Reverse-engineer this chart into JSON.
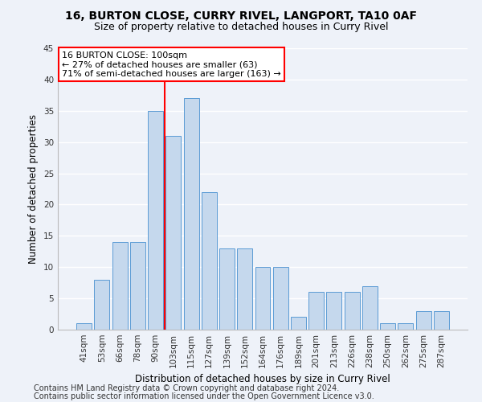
{
  "title1": "16, BURTON CLOSE, CURRY RIVEL, LANGPORT, TA10 0AF",
  "title2": "Size of property relative to detached houses in Curry Rivel",
  "xlabel": "Distribution of detached houses by size in Curry Rivel",
  "ylabel": "Number of detached properties",
  "categories": [
    "41sqm",
    "53sqm",
    "66sqm",
    "78sqm",
    "90sqm",
    "103sqm",
    "115sqm",
    "127sqm",
    "139sqm",
    "152sqm",
    "164sqm",
    "176sqm",
    "189sqm",
    "201sqm",
    "213sqm",
    "226sqm",
    "238sqm",
    "250sqm",
    "262sqm",
    "275sqm",
    "287sqm"
  ],
  "values": [
    1,
    8,
    14,
    14,
    35,
    31,
    37,
    22,
    13,
    13,
    10,
    10,
    2,
    6,
    6,
    6,
    7,
    1,
    1,
    3,
    3
  ],
  "bar_color": "#c5d8ed",
  "bar_edge_color": "#5b9bd5",
  "vline_color": "red",
  "vline_x": 4.5,
  "annotation_text": "16 BURTON CLOSE: 100sqm\n← 27% of detached houses are smaller (63)\n71% of semi-detached houses are larger (163) →",
  "annotation_box_color": "white",
  "annotation_box_edge": "red",
  "ylim": [
    0,
    45
  ],
  "yticks": [
    0,
    5,
    10,
    15,
    20,
    25,
    30,
    35,
    40,
    45
  ],
  "footer1": "Contains HM Land Registry data © Crown copyright and database right 2024.",
  "footer2": "Contains public sector information licensed under the Open Government Licence v3.0.",
  "bg_color": "#eef2f9",
  "grid_color": "#ffffff",
  "title1_fontsize": 10,
  "title2_fontsize": 9,
  "axis_label_fontsize": 8.5,
  "tick_fontsize": 7.5,
  "annotation_fontsize": 8,
  "footer_fontsize": 7
}
